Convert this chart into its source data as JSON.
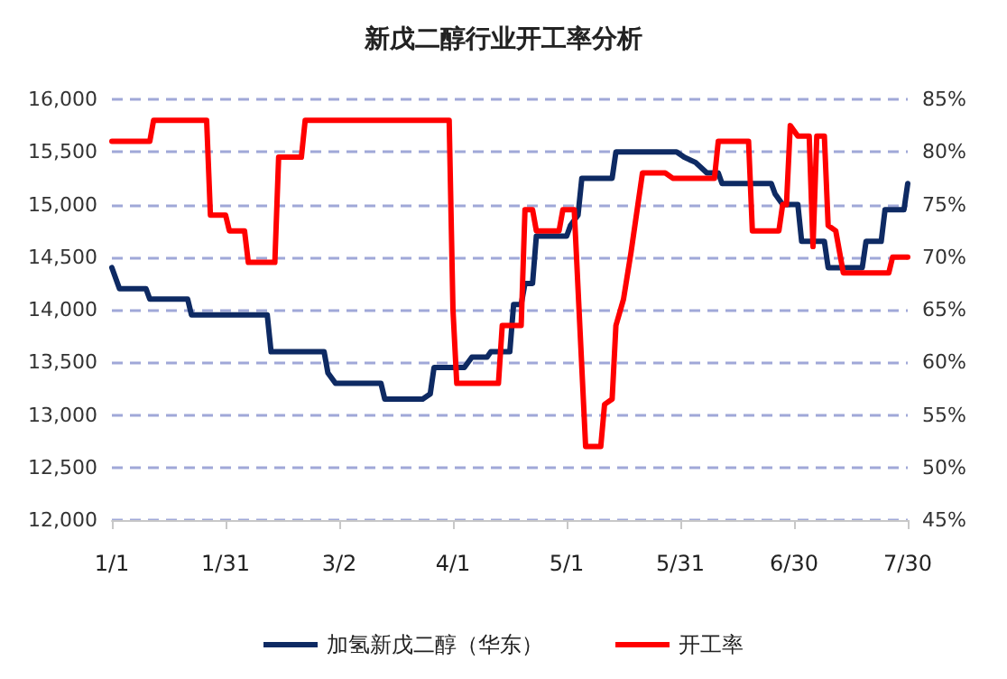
{
  "chart_data": {
    "type": "line",
    "title": "新戊二醇行业开工率分析",
    "xlim": [
      "--01-01",
      "--07-30"
    ],
    "xticks": [
      {
        "value": "--01-01",
        "label": "1/1"
      },
      {
        "value": "--01-31",
        "label": "1/31"
      },
      {
        "value": "--03-02",
        "label": "3/2"
      },
      {
        "value": "--04-01",
        "label": "4/1"
      },
      {
        "value": "--05-01",
        "label": "5/1"
      },
      {
        "value": "--05-31",
        "label": "5/31"
      },
      {
        "value": "--06-30",
        "label": "6/30"
      },
      {
        "value": "--07-30",
        "label": "7/30"
      }
    ],
    "ylim": [
      12000,
      16000
    ],
    "yticks": [
      {
        "value": 12000,
        "label": "12,000"
      },
      {
        "value": 12500,
        "label": "12,500"
      },
      {
        "value": 13000,
        "label": "13,000"
      },
      {
        "value": 13500,
        "label": "13,500"
      },
      {
        "value": 14000,
        "label": "14,000"
      },
      {
        "value": 14500,
        "label": "14,500"
      },
      {
        "value": 15000,
        "label": "15,000"
      },
      {
        "value": 15500,
        "label": "15,500"
      },
      {
        "value": 16000,
        "label": "16,000"
      }
    ],
    "y2lim": [
      45,
      85
    ],
    "y2ticks": [
      {
        "value": 45,
        "label": "45%"
      },
      {
        "value": 50,
        "label": "50%"
      },
      {
        "value": 55,
        "label": "55%"
      },
      {
        "value": 60,
        "label": "60%"
      },
      {
        "value": 65,
        "label": "65%"
      },
      {
        "value": 70,
        "label": "70%"
      },
      {
        "value": 75,
        "label": "75%"
      },
      {
        "value": 80,
        "label": "80%"
      },
      {
        "value": 85,
        "label": "85%"
      }
    ],
    "grid": "y",
    "legend": "bottom",
    "marker": "none",
    "line_style": "solid",
    "series": [
      {
        "name": "加氢新戊二醇（华东）",
        "color": "#0e2a63",
        "x": [
          "--01-01",
          "--01-03",
          "--01-10",
          "--01-11",
          "--01-21",
          "--01-22",
          "--02-11",
          "--02-12",
          "--02-26",
          "--02-27",
          "--03-01",
          "--03-13",
          "--03-14",
          "--03-24",
          "--03-26",
          "--03-27",
          "--04-04",
          "--04-06",
          "--04-10",
          "--04-11",
          "--04-16",
          "--04-17",
          "--04-19",
          "--04-20",
          "--04-22",
          "--04-23",
          "--05-01",
          "--05-02",
          "--05-04",
          "--05-05",
          "--05-13",
          "--05-14",
          "--05-30",
          "--06-01",
          "--06-04",
          "--06-07",
          "--06-10",
          "--06-11",
          "--06-24",
          "--06-25",
          "--06-27",
          "--07-01",
          "--07-02",
          "--07-08",
          "--07-09",
          "--07-18",
          "--07-19",
          "--07-23",
          "--07-24",
          "--07-29",
          "--07-30"
        ],
        "values": [
          14400,
          14200,
          14200,
          14100,
          14100,
          13950,
          13950,
          13600,
          13600,
          13400,
          13300,
          13300,
          13150,
          13150,
          13200,
          13450,
          13450,
          13550,
          13550,
          13600,
          13600,
          14050,
          14050,
          14250,
          14250,
          14700,
          14700,
          14800,
          14900,
          15250,
          15250,
          15500,
          15500,
          15450,
          15400,
          15300,
          15300,
          15200,
          15200,
          15100,
          15000,
          15000,
          14650,
          14650,
          14400,
          14400,
          14650,
          14650,
          14950,
          14950,
          15200
        ]
      },
      {
        "name": "开工率",
        "color": "#ff0000",
        "axis": "y2",
        "x": [
          "--01-01",
          "--01-11",
          "--01-12",
          "--01-26",
          "--01-27",
          "--01-31",
          "--02-01",
          "--02-05",
          "--02-06",
          "--02-13",
          "--02-14",
          "--02-20",
          "--02-21",
          "--03-31",
          "--04-01",
          "--04-02",
          "--04-13",
          "--04-14",
          "--04-19",
          "--04-20",
          "--04-22",
          "--04-23",
          "--04-29",
          "--04-30",
          "--05-03",
          "--05-06",
          "--05-10",
          "--05-11",
          "--05-13",
          "--05-14",
          "--05-16",
          "--05-18",
          "--05-21",
          "--05-27",
          "--05-29",
          "--06-09",
          "--06-10",
          "--06-18",
          "--06-19",
          "--06-26",
          "--06-27",
          "--06-28",
          "--06-29",
          "--07-01",
          "--07-04",
          "--07-05",
          "--07-06",
          "--07-08",
          "--07-09",
          "--07-11",
          "--07-13",
          "--07-25",
          "--07-26",
          "--07-30"
        ],
        "values": [
          81,
          81,
          83,
          83,
          74,
          74,
          72.5,
          72.5,
          69.5,
          69.5,
          79.5,
          79.5,
          83,
          83,
          65,
          58,
          58,
          63.5,
          63.5,
          74.5,
          74.5,
          72.5,
          72.5,
          74.5,
          74.5,
          52,
          52,
          56,
          56.5,
          63.5,
          66,
          70.5,
          78,
          78,
          77.5,
          77.5,
          81,
          81,
          72.5,
          72.5,
          75,
          75,
          82.5,
          81.5,
          81.5,
          71,
          81.5,
          81.5,
          73,
          72.5,
          68.5,
          68.5,
          70,
          70
        ]
      }
    ]
  }
}
